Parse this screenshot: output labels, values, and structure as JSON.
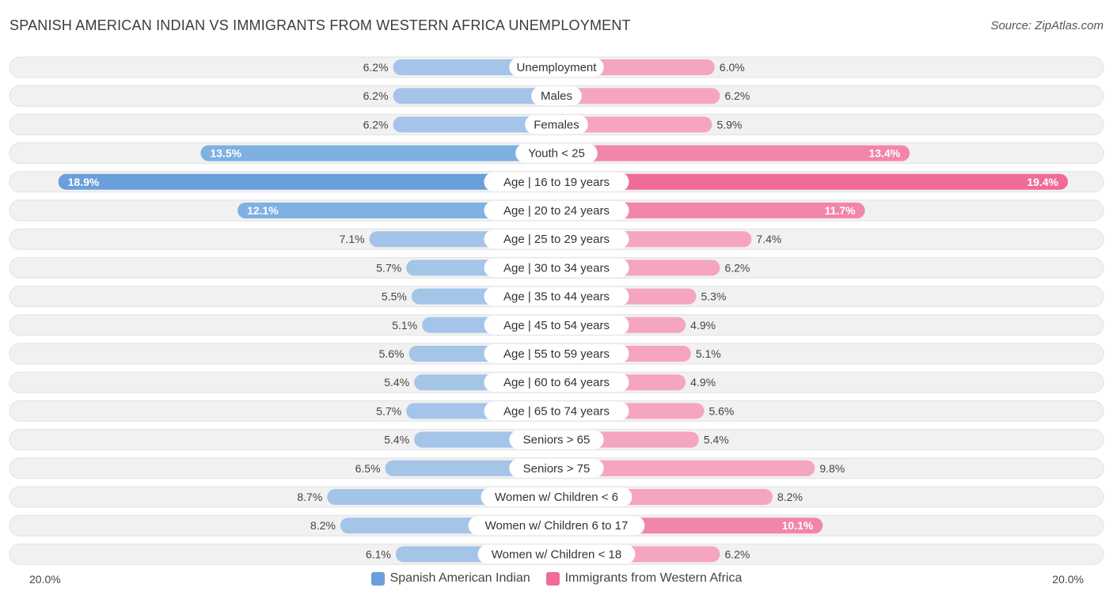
{
  "title": "SPANISH AMERICAN INDIAN VS IMMIGRANTS FROM WESTERN AFRICA UNEMPLOYMENT",
  "source": "Source: ZipAtlas.com",
  "colors": {
    "left_light": "#a4c4e8",
    "left_strong": "#6a9fdb",
    "right_light": "#f5a5bf",
    "right_strong": "#f06b97",
    "row_bg": "#f1f1f1"
  },
  "chart_data": {
    "type": "bar",
    "orientation": "horizontal-diverging",
    "axis_max": 20.0,
    "axis_left_label": "20.0%",
    "axis_right_label": "20.0%",
    "categories": [
      "Unemployment",
      "Males",
      "Females",
      "Youth < 25",
      "Age | 16 to 19 years",
      "Age | 20 to 24 years",
      "Age | 25 to 29 years",
      "Age | 30 to 34 years",
      "Age | 35 to 44 years",
      "Age | 45 to 54 years",
      "Age | 55 to 59 years",
      "Age | 60 to 64 years",
      "Age | 65 to 74 years",
      "Seniors > 65",
      "Seniors > 75",
      "Women w/ Children < 6",
      "Women w/ Children 6 to 17",
      "Women w/ Children < 18"
    ],
    "series": [
      {
        "name": "Spanish American Indian",
        "values": [
          6.2,
          6.2,
          6.2,
          13.5,
          18.9,
          12.1,
          7.1,
          5.7,
          5.5,
          5.1,
          5.6,
          5.4,
          5.7,
          5.4,
          6.5,
          8.7,
          8.2,
          6.1
        ],
        "labels": [
          "6.2%",
          "6.2%",
          "6.2%",
          "13.5%",
          "18.9%",
          "12.1%",
          "7.1%",
          "5.7%",
          "5.5%",
          "5.1%",
          "5.6%",
          "5.4%",
          "5.7%",
          "5.4%",
          "6.5%",
          "8.7%",
          "8.2%",
          "6.1%"
        ]
      },
      {
        "name": "Immigrants from Western Africa",
        "values": [
          6.0,
          6.2,
          5.9,
          13.4,
          19.4,
          11.7,
          7.4,
          6.2,
          5.3,
          4.9,
          5.1,
          4.9,
          5.6,
          5.4,
          9.8,
          8.2,
          10.1,
          6.2
        ],
        "labels": [
          "6.0%",
          "6.2%",
          "5.9%",
          "13.4%",
          "19.4%",
          "11.7%",
          "7.4%",
          "6.2%",
          "5.3%",
          "4.9%",
          "5.1%",
          "4.9%",
          "5.6%",
          "5.4%",
          "9.8%",
          "8.2%",
          "10.1%",
          "6.2%"
        ]
      }
    ],
    "legend_position": "bottom-center"
  }
}
